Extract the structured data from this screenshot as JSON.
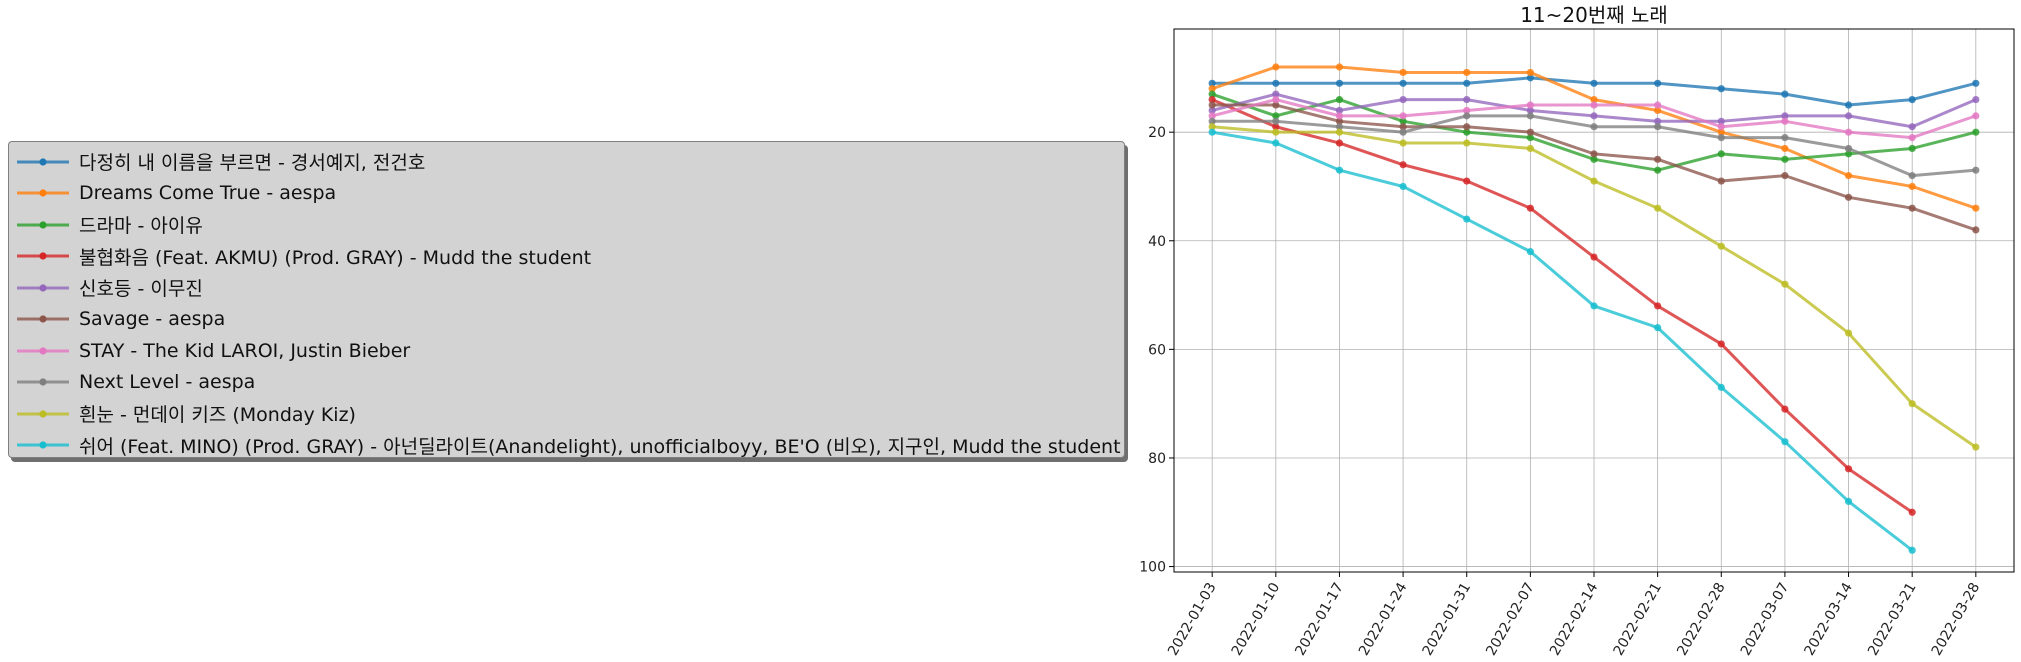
{
  "chart_data": {
    "type": "line",
    "title": "11~20번째 노래",
    "xlabel": "",
    "ylabel": "",
    "x": [
      "2022-01-03",
      "2022-01-10",
      "2022-01-17",
      "2022-01-24",
      "2022-01-31",
      "2022-02-07",
      "2022-02-14",
      "2022-02-21",
      "2022-02-28",
      "2022-03-07",
      "2022-03-14",
      "2022-03-21",
      "2022-03-28"
    ],
    "yticks": [
      20,
      40,
      60,
      80,
      100
    ],
    "ylim": [
      1,
      101
    ],
    "y_inverted": true,
    "grid": true,
    "legend_position": "left, outside plot",
    "series": [
      {
        "name": "다정히 내 이름을 부르면 - 경서예지, 전건호",
        "color": "#1f77b4",
        "values": [
          11,
          11,
          11,
          11,
          11,
          10,
          11,
          11,
          12,
          13,
          15,
          14,
          11
        ]
      },
      {
        "name": "Dreams Come True - aespa",
        "color": "#ff7f0e",
        "values": [
          12,
          8,
          8,
          9,
          9,
          9,
          14,
          16,
          20,
          23,
          28,
          30,
          34
        ]
      },
      {
        "name": "드라마 - 아이유",
        "color": "#2ca02c",
        "values": [
          13,
          17,
          14,
          18,
          20,
          21,
          25,
          27,
          24,
          25,
          24,
          23,
          20
        ]
      },
      {
        "name": "불협화음 (Feat. AKMU) (Prod. GRAY) - Mudd the student",
        "color": "#d62728",
        "values": [
          14,
          19,
          22,
          26,
          29,
          34,
          43,
          52,
          59,
          71,
          82,
          90,
          null
        ]
      },
      {
        "name": "신호등 - 이무진",
        "color": "#9467bd",
        "values": [
          16,
          13,
          16,
          14,
          14,
          16,
          17,
          18,
          18,
          17,
          17,
          19,
          14
        ]
      },
      {
        "name": "Savage - aespa",
        "color": "#8c564b",
        "values": [
          15,
          15,
          18,
          19,
          19,
          20,
          24,
          25,
          29,
          28,
          32,
          34,
          38
        ]
      },
      {
        "name": "STAY - The Kid LAROI, Justin Bieber",
        "color": "#e377c2",
        "values": [
          17,
          14,
          17,
          17,
          16,
          15,
          15,
          15,
          19,
          18,
          20,
          21,
          17
        ]
      },
      {
        "name": "Next Level - aespa",
        "color": "#7f7f7f",
        "values": [
          18,
          18,
          19,
          20,
          17,
          17,
          19,
          19,
          21,
          21,
          23,
          28,
          27
        ]
      },
      {
        "name": "흰눈 - 먼데이 키즈 (Monday Kiz)",
        "color": "#bcbd22",
        "values": [
          19,
          20,
          20,
          22,
          22,
          23,
          29,
          34,
          41,
          48,
          57,
          70,
          78
        ]
      },
      {
        "name": "쉬어 (Feat. MINO) (Prod. GRAY) - 아넌딜라이트(Anandelight), unofficialboyy, BE'O (비오), 지구인, Mudd the student",
        "color": "#17becf",
        "values": [
          20,
          22,
          27,
          30,
          36,
          42,
          52,
          56,
          67,
          77,
          88,
          97,
          null
        ]
      }
    ]
  }
}
